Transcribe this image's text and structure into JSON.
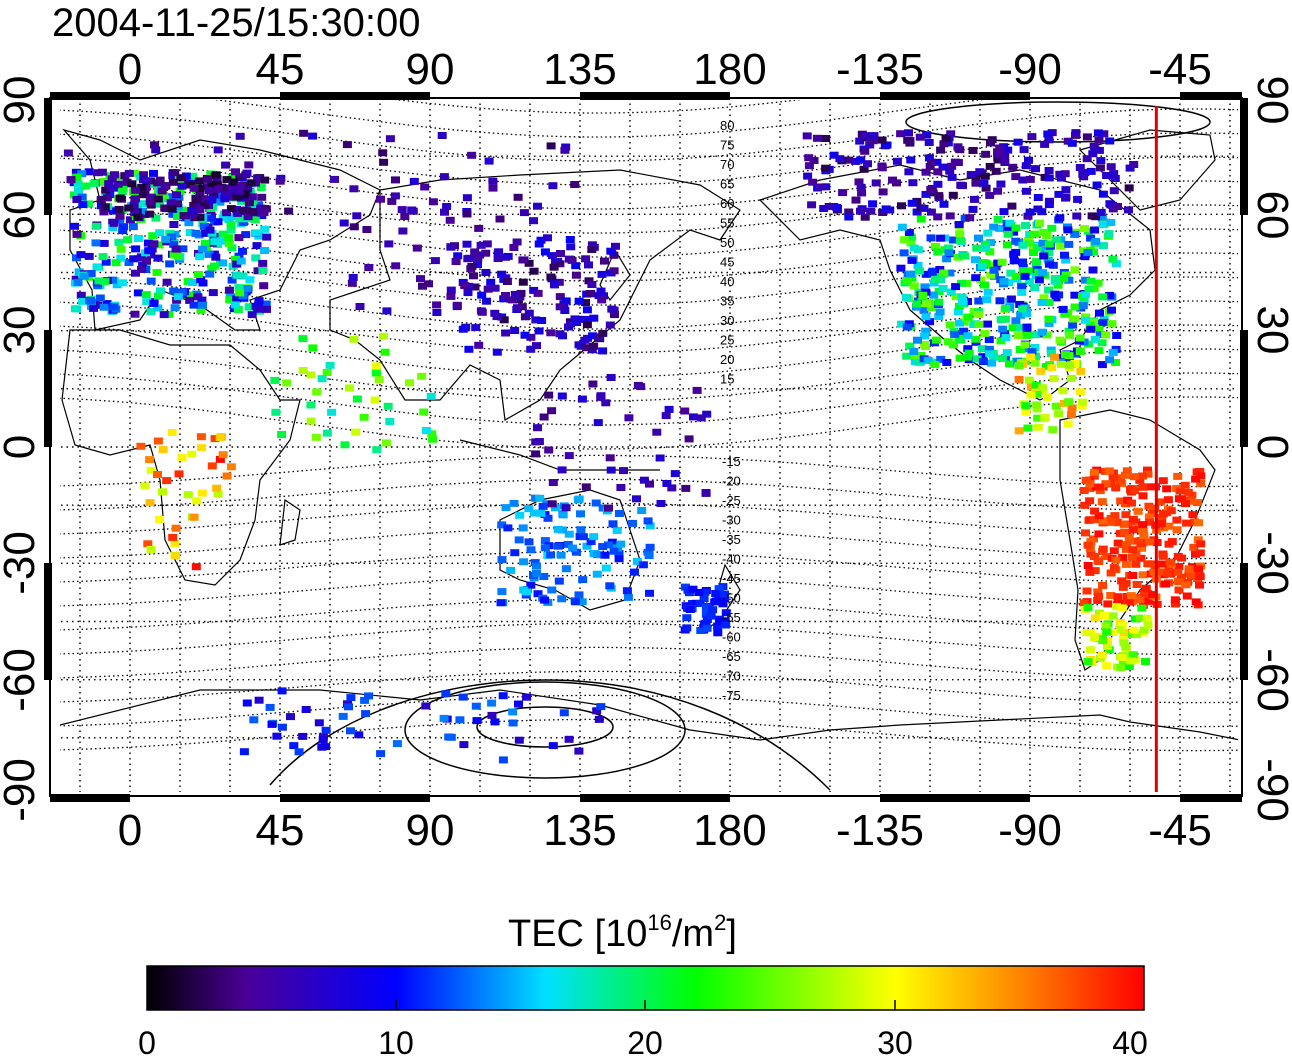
{
  "title": "2004-11-25/15:30:00",
  "map": {
    "lon_ticks": [
      "0",
      "45",
      "90",
      "135",
      "180",
      "-135",
      "-90",
      "-45"
    ],
    "lat_ticks": [
      "90",
      "60",
      "30",
      "0",
      "-30",
      "-60",
      "-90"
    ],
    "grid": "dotted",
    "marker_line": {
      "color": "#e00000",
      "longitude": -52
    },
    "contour_labels_north": [
      "80",
      "75",
      "70",
      "65",
      "60",
      "55",
      "50",
      "45",
      "40",
      "35",
      "30",
      "25",
      "20",
      "15"
    ],
    "contour_labels_south": [
      "-15",
      "-20",
      "-25",
      "-30",
      "-35",
      "-40",
      "-45",
      "-50",
      "-55",
      "-60",
      "-65",
      "-70",
      "-75"
    ]
  },
  "colorbar": {
    "label_main": "TEC  [10",
    "label_sup1": "16",
    "label_mid": "/m",
    "label_sup2": "2",
    "label_end": "]",
    "ticks": [
      "0",
      "10",
      "20",
      "30",
      "40"
    ],
    "range": [
      0,
      40
    ],
    "colors": [
      "#000000",
      "#4a0098",
      "#0000ff",
      "#00e0ff",
      "#00ff00",
      "#ffff00",
      "#ff8000",
      "#ff0000"
    ]
  }
}
